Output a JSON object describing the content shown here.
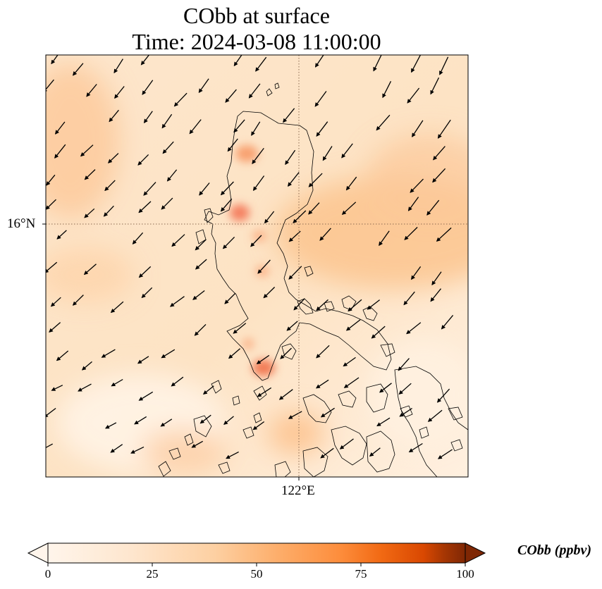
{
  "title": {
    "line1": "CObb at surface",
    "line2": "Time: 2024-03-08 11:00:00"
  },
  "map": {
    "lat_label": "16°N",
    "lon_label": "122°E",
    "gridline_style": "dotted",
    "coastline_color": "#000000",
    "features": [
      "coastlines",
      "wind-vectors",
      "concentration-field"
    ]
  },
  "colorbar": {
    "label": "CObb (ppbv)",
    "colormap": "Oranges",
    "min": 0,
    "max": 100,
    "extend": "both",
    "ticks": [
      "0",
      "25",
      "50",
      "75",
      "100"
    ],
    "colors": [
      "#fff5eb",
      "#fdd0a2",
      "#fdae6b",
      "#f16913",
      "#d94801",
      "#7f2704"
    ]
  }
}
